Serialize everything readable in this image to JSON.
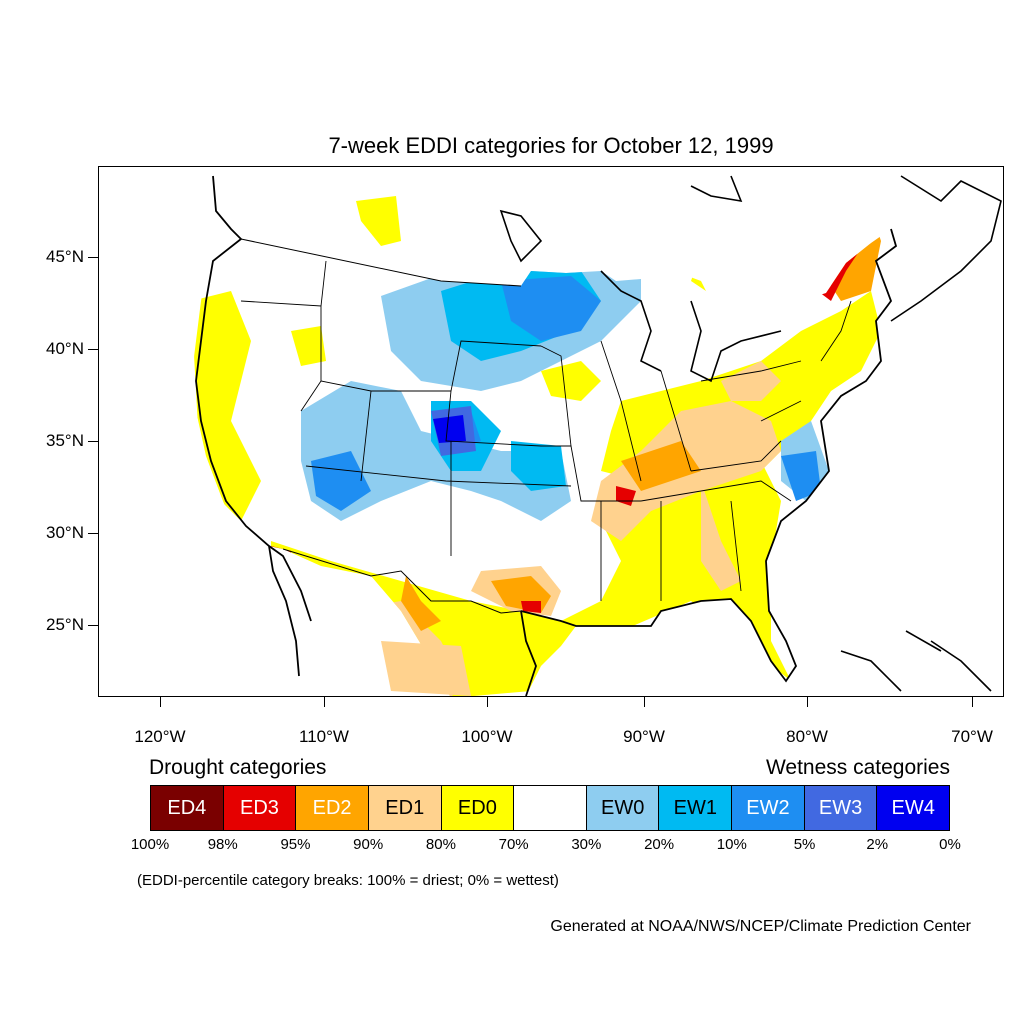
{
  "title": "7-week EDDI categories for October 12, 1999",
  "latitude_labels": [
    "45°N",
    "40°N",
    "35°N",
    "30°N",
    "25°N"
  ],
  "longitude_labels": [
    "120°W",
    "110°W",
    "100°W",
    "90°W",
    "80°W",
    "70°W"
  ],
  "legend": {
    "drought_heading": "Drought categories",
    "wetness_heading": "Wetness categories",
    "categories": [
      {
        "label": "ED4",
        "color": "#7a0000",
        "text_color": "#ffffff"
      },
      {
        "label": "ED3",
        "color": "#e50000",
        "text_color": "#ffffff"
      },
      {
        "label": "ED2",
        "color": "#ffa500",
        "text_color": "#ffffff"
      },
      {
        "label": "ED1",
        "color": "#ffd28e",
        "text_color": "#000000"
      },
      {
        "label": "ED0",
        "color": "#ffff00",
        "text_color": "#000000"
      },
      {
        "label": "",
        "color": "#ffffff",
        "text_color": "#000000"
      },
      {
        "label": "EW0",
        "color": "#8ecdf0",
        "text_color": "#000000"
      },
      {
        "label": "EW1",
        "color": "#00baf2",
        "text_color": "#000000"
      },
      {
        "label": "EW2",
        "color": "#1e8ef2",
        "text_color": "#ffffff"
      },
      {
        "label": "EW3",
        "color": "#4169e1",
        "text_color": "#ffffff"
      },
      {
        "label": "EW4",
        "color": "#0000f0",
        "text_color": "#ffffff"
      }
    ],
    "breaks": [
      "100%",
      "98%",
      "95%",
      "90%",
      "80%",
      "70%",
      "30%",
      "20%",
      "10%",
      "5%",
      "2%",
      "0%"
    ]
  },
  "breaks_note": "(EDDI-percentile category breaks: 100% = driest; 0% = wettest)",
  "credit": "Generated at NOAA/NWS/NCEP/Climate Prediction Center"
}
